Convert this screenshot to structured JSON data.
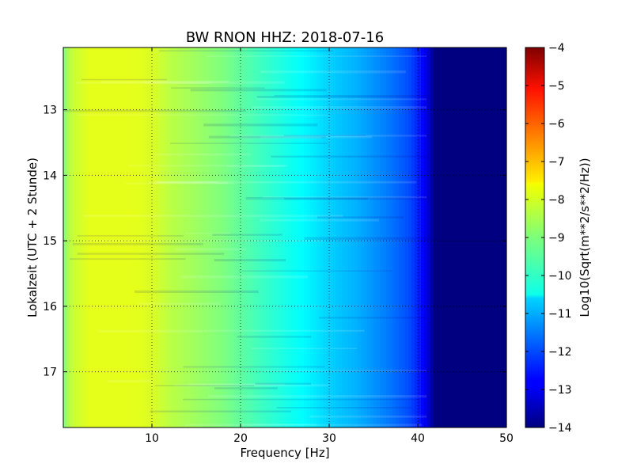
{
  "chart_data": {
    "type": "heatmap",
    "title": "BW RNON HHZ: 2018-07-16",
    "xlabel": "Frequency [Hz]",
    "ylabel": "Lokalzeit (UTC + 2 Stunde)",
    "xlim": [
      0,
      50
    ],
    "ylim": [
      12.05,
      17.85
    ],
    "y_inverted": true,
    "x_ticks": [
      10,
      20,
      30,
      40,
      50
    ],
    "y_ticks": [
      13,
      14,
      15,
      16,
      17
    ],
    "grid": true,
    "colormap": "jet",
    "colorbar": {
      "label": "Log10(Sqrt(m**2/s**2/Hz))",
      "range": [
        -14,
        -4
      ],
      "ticks": [
        -4,
        -5,
        -6,
        -7,
        -8,
        -9,
        -10,
        -11,
        -12,
        -13,
        -14
      ]
    },
    "frequency_profile": {
      "frequency_hz": [
        0,
        1,
        3,
        5,
        8,
        10,
        12,
        15,
        18,
        20,
        22,
        25,
        28,
        30,
        33,
        35,
        37,
        39,
        40,
        41,
        42,
        45,
        50
      ],
      "log10_psd": [
        -9.0,
        -8.3,
        -8.0,
        -8.0,
        -8.0,
        -8.1,
        -8.4,
        -8.7,
        -9.0,
        -9.3,
        -9.6,
        -10.0,
        -10.4,
        -10.7,
        -11.0,
        -11.3,
        -11.6,
        -12.0,
        -12.4,
        -13.0,
        -14.0,
        -14.0,
        -14.0
      ]
    }
  }
}
